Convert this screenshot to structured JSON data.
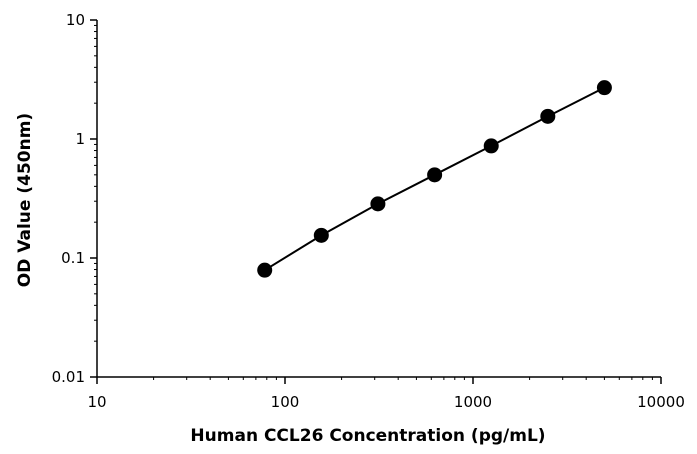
{
  "chart_data": {
    "type": "scatter",
    "title": "",
    "xlabel": "Human CCL26 Concentration (pg/mL)",
    "ylabel": "OD Value (450nm)",
    "xscale": "log",
    "yscale": "log",
    "xlim": [
      10,
      10000
    ],
    "ylim": [
      0.01,
      10
    ],
    "x_ticks": [
      "10",
      "100",
      "1000",
      "10000"
    ],
    "y_ticks": [
      "0.01",
      "0.1",
      "1",
      "10"
    ],
    "grid": false,
    "legend": "none",
    "series": [
      {
        "x": [
          78,
          156,
          312,
          625,
          1250,
          2500,
          5000
        ],
        "y": [
          0.079,
          0.155,
          0.285,
          0.5,
          0.875,
          1.55,
          2.7
        ],
        "marker": "circle",
        "line": true,
        "color": "#000000"
      }
    ]
  }
}
